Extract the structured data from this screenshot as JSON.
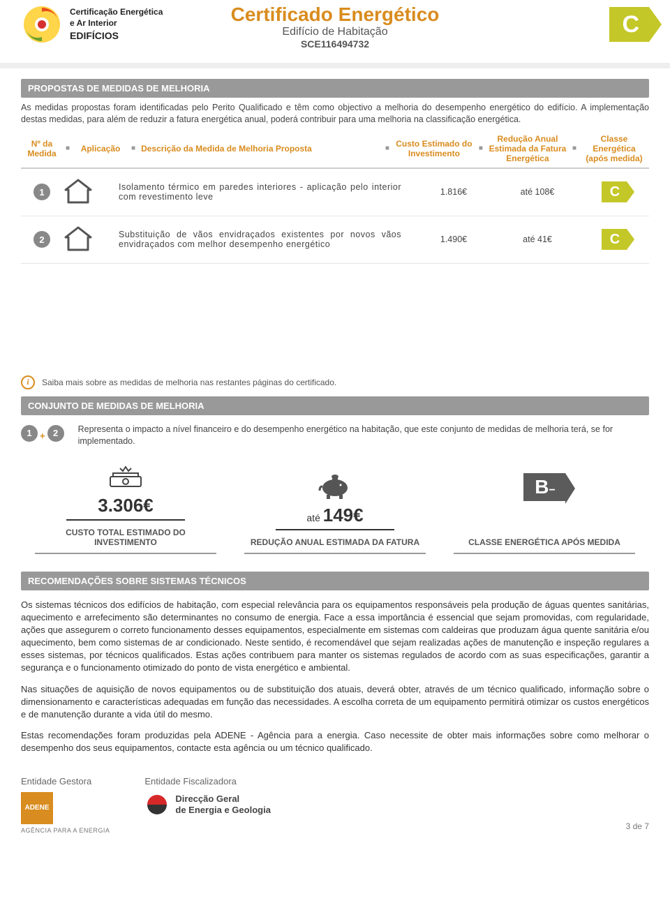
{
  "header": {
    "logo_text_l1": "Certificação Energética",
    "logo_text_l2": "e Ar Interior",
    "logo_text_l3": "EDIFÍCIOS",
    "title": "Certificado Energético",
    "subtitle1": "Edifício de Habitação",
    "subtitle2": "SCE116494732",
    "main_class": "C",
    "accent_color": "#d98c1f",
    "class_color": "#c4c728"
  },
  "section1": {
    "title": "PROPOSTAS DE MEDIDAS DE MELHORIA",
    "intro": "As medidas propostas foram identificadas pelo Perito Qualificado e têm como objectivo a melhoria do desempenho energético do edifício. A implementação destas medidas, para além de reduzir a fatura energética anual, poderá contribuir para uma melhoria na classificação energética.",
    "headers": {
      "num": "Nº da Medida",
      "app": "Aplicação",
      "desc": "Descrição da Medida de Melhoria Proposta",
      "cost": "Custo Estimado do Investimento",
      "red": "Redução Anual Estimada da Fatura Energética",
      "class": "Classe Energética (após medida)"
    },
    "rows": [
      {
        "num": "1",
        "desc": "Isolamento térmico em paredes interiores - aplicação pelo interior com revestimento leve",
        "cost": "1.816€",
        "red": "até 108€",
        "class": "C"
      },
      {
        "num": "2",
        "desc": "Substituição de vãos envidraçados existentes por novos vãos envidraçados com melhor desempenho energético",
        "cost": "1.490€",
        "red": "até 41€",
        "class": "C"
      }
    ]
  },
  "info_text": "Saiba mais sobre as medidas de melhoria nas restantes páginas do certificado.",
  "section2": {
    "title": "CONJUNTO DE MEDIDAS DE MELHORIA",
    "combo_text": "Representa o impacto a nível financeiro e do desempenho energético na habitação, que este conjunto de medidas de melhoria terá, se for implementado.",
    "badges": [
      "1",
      "2"
    ],
    "summary": [
      {
        "value": "3.306€",
        "prefix": "",
        "label": "CUSTO TOTAL ESTIMADO DO INVESTIMENTO"
      },
      {
        "value": "149€",
        "prefix": "até ",
        "label": "REDUÇÃO ANUAL ESTIMADA DA FATURA"
      },
      {
        "value": "B⁻",
        "prefix": "",
        "label": "CLASSE ENERGÉTICA APÓS MEDIDA"
      }
    ]
  },
  "section3": {
    "title": "RECOMENDAÇÕES SOBRE SISTEMAS TÉCNICOS",
    "p1": "Os sistemas técnicos dos edifícios de habitação, com especial relevância para os equipamentos responsáveis pela produção de águas quentes sanitárias, aquecimento e arrefecimento são determinantes no consumo de energia. Face a essa importância é essencial que sejam promovidas, com regularidade, ações que assegurem o correto funcionamento desses equipamentos, especialmente em sistemas com caldeiras que produzam água quente sanitária e/ou aquecimento, bem como sistemas de ar condicionado. Neste sentido, é recomendável que sejam realizadas ações de manutenção e inspeção regulares a esses sistemas, por técnicos qualificados. Estas ações contribuem para manter os sistemas regulados de acordo com as suas especificações, garantir a segurança e o funcionamento otimizado do ponto de vista energético e ambiental.",
    "p2": "Nas situações de aquisição de novos equipamentos ou de substituição dos atuais, deverá obter, através de um técnico qualificado, informação sobre o dimensionamento e características adequadas em função das necessidades. A escolha correta de um equipamento permitirá otimizar os custos energéticos e de manutenção durante a vida útil do mesmo.",
    "p3": "Estas recomendações foram produzidas pela ADENE - Agência para a energia. Caso necessite de obter mais informações sobre como melhorar o desempenho dos seus equipamentos, contacte esta agência ou um técnico qualificado."
  },
  "footer": {
    "col1_title": "Entidade Gestora",
    "col1_logo": "ADENE",
    "col1_sub": "AGÊNCIA PARA A ENERGIA",
    "col2_title": "Entidade Fiscalizadora",
    "col2_l1": "Direcção Geral",
    "col2_l2": "de Energia e Geologia",
    "page": "3 de 7"
  }
}
